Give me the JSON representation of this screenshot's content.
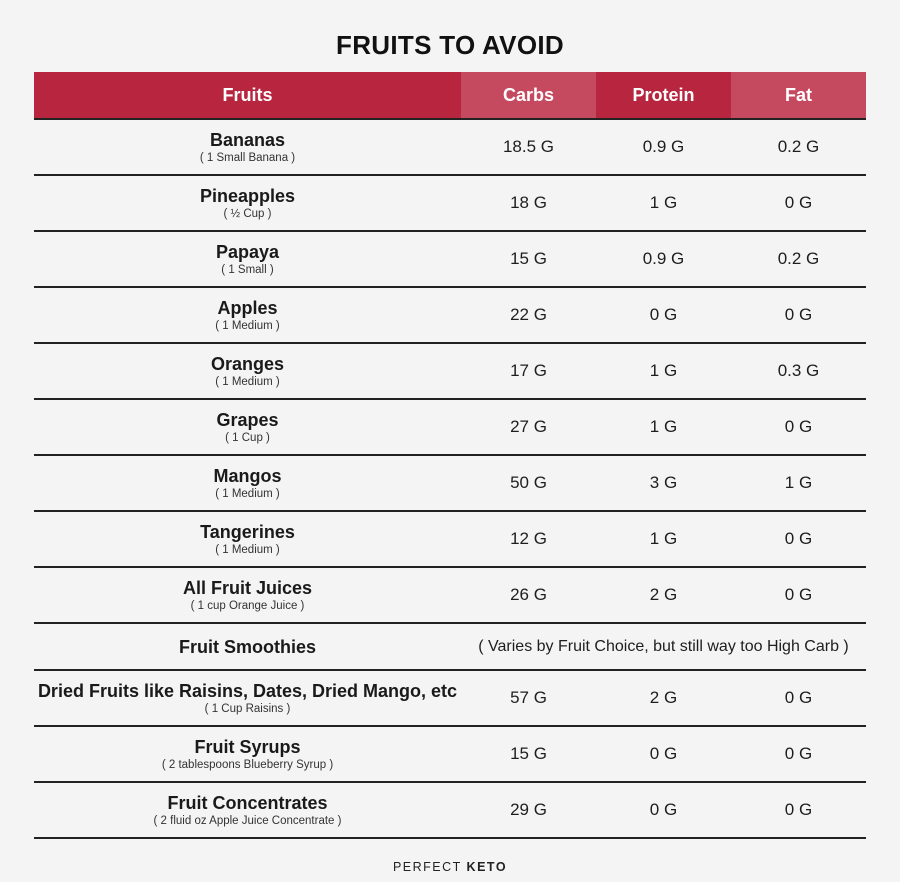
{
  "title": "FRUITS TO AVOID",
  "headers": {
    "fruits": "Fruits",
    "carbs": "Carbs",
    "protein": "Protein",
    "fat": "Fat"
  },
  "header_colors": {
    "dark": "#b8253f",
    "light": "#c64a5f"
  },
  "rows": [
    {
      "name": "Bananas",
      "serving": "( 1 Small Banana )",
      "carbs": "18.5 G",
      "protein": "0.9 G",
      "fat": "0.2 G"
    },
    {
      "name": "Pineapples",
      "serving": "( ½ Cup )",
      "carbs": "18 G",
      "protein": "1 G",
      "fat": "0 G"
    },
    {
      "name": "Papaya",
      "serving": "( 1 Small )",
      "carbs": "15 G",
      "protein": "0.9 G",
      "fat": "0.2 G"
    },
    {
      "name": "Apples",
      "serving": "( 1 Medium )",
      "carbs": "22 G",
      "protein": "0 G",
      "fat": "0 G"
    },
    {
      "name": "Oranges",
      "serving": "( 1 Medium )",
      "carbs": "17 G",
      "protein": "1 G",
      "fat": "0.3 G"
    },
    {
      "name": "Grapes",
      "serving": "( 1 Cup )",
      "carbs": "27 G",
      "protein": "1 G",
      "fat": "0 G"
    },
    {
      "name": "Mangos",
      "serving": "( 1 Medium )",
      "carbs": "50 G",
      "protein": "3 G",
      "fat": "1 G"
    },
    {
      "name": "Tangerines",
      "serving": "( 1 Medium )",
      "carbs": "12 G",
      "protein": "1 G",
      "fat": "0 G"
    },
    {
      "name": "All Fruit Juices",
      "serving": "( 1 cup Orange Juice )",
      "carbs": "26 G",
      "protein": "2 G",
      "fat": "0 G"
    },
    {
      "name": "Fruit Smoothies",
      "note": "( Varies by Fruit Choice, but still way too High Carb )"
    },
    {
      "name": "Dried Fruits like Raisins, Dates, Dried Mango, etc",
      "serving": "( 1 Cup Raisins )",
      "carbs": "57 G",
      "protein": "2 G",
      "fat": "0 G"
    },
    {
      "name": "Fruit Syrups",
      "serving": "( 2 tablespoons Blueberry Syrup )",
      "carbs": "15 G",
      "protein": "0 G",
      "fat": "0 G"
    },
    {
      "name": "Fruit Concentrates",
      "serving": "( 2 fluid oz Apple Juice Concentrate )",
      "carbs": "29 G",
      "protein": "0 G",
      "fat": "0 G"
    }
  ],
  "brand": {
    "prefix": "PERFECT",
    "suffix": "KETO"
  }
}
